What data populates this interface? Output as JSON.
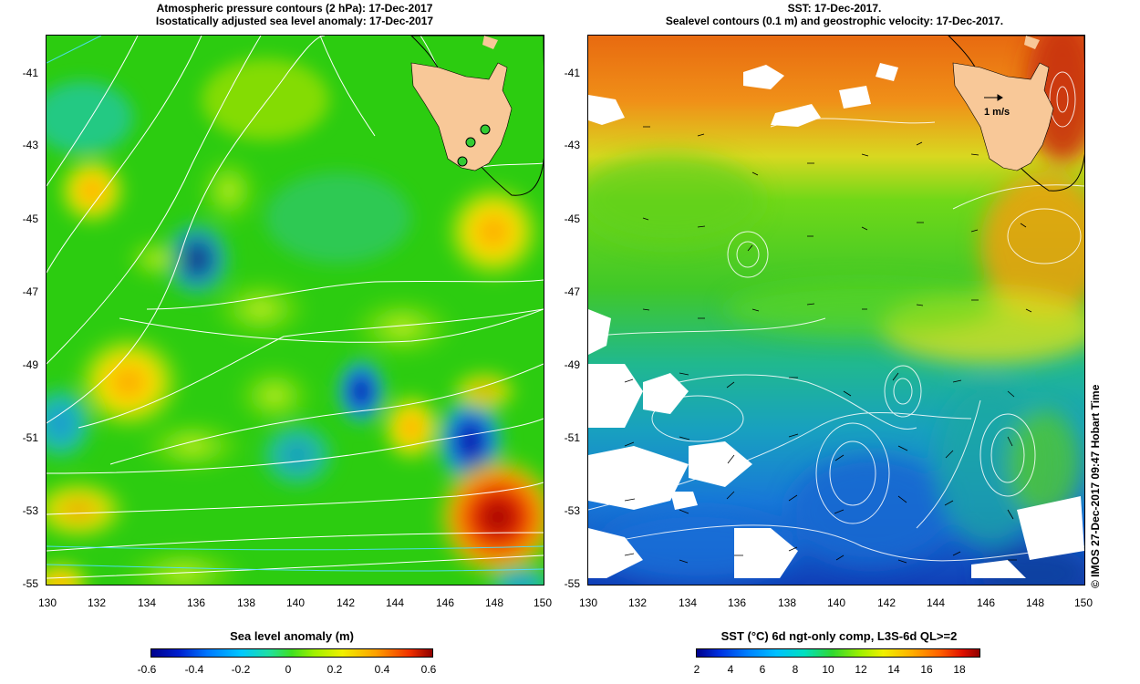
{
  "left_panel": {
    "title_line1": "Atmospheric pressure contours (2 hPa): 17-Dec-2017",
    "title_line2": "Isostatically adjusted sea level anomaly: 17-Dec-2017",
    "y_ticks": [
      "-41",
      "-43",
      "-45",
      "-47",
      "-49",
      "-51",
      "-53",
      "-55"
    ],
    "x_ticks": [
      "130",
      "132",
      "134",
      "136",
      "138",
      "140",
      "142",
      "144",
      "146",
      "148",
      "150"
    ],
    "colorbar_title": "Sea level anomaly (m)",
    "colorbar_labels": [
      "-0.6",
      "-0.4",
      "-0.2",
      "0",
      "0.2",
      "0.4",
      "0.6"
    ]
  },
  "right_panel": {
    "title_line1": "SST: 17-Dec-2017.",
    "title_line2": "Sealevel contours (0.1 m) and geostrophic velocity: 17-Dec-2017.",
    "y_ticks": [
      "-41",
      "-43",
      "-45",
      "-47",
      "-49",
      "-51",
      "-53",
      "-55"
    ],
    "x_ticks": [
      "130",
      "132",
      "134",
      "136",
      "138",
      "140",
      "142",
      "144",
      "146",
      "148",
      "150"
    ],
    "velocity_scale_label": "1 m/s",
    "colorbar_title": "SST (°C) 6d ngt-only comp, L3S-6d QL>=2",
    "colorbar_labels": [
      "2",
      "4",
      "6",
      "8",
      "10",
      "12",
      "14",
      "16",
      "18"
    ]
  },
  "credit": "© IMOS 27-Dec-2017 09:47 Hobart Time",
  "colors": {
    "land": "#f8c898",
    "sla_green": "#33cc00",
    "sst_orange": "#f08a10",
    "sst_blue": "#1a6ad8"
  }
}
